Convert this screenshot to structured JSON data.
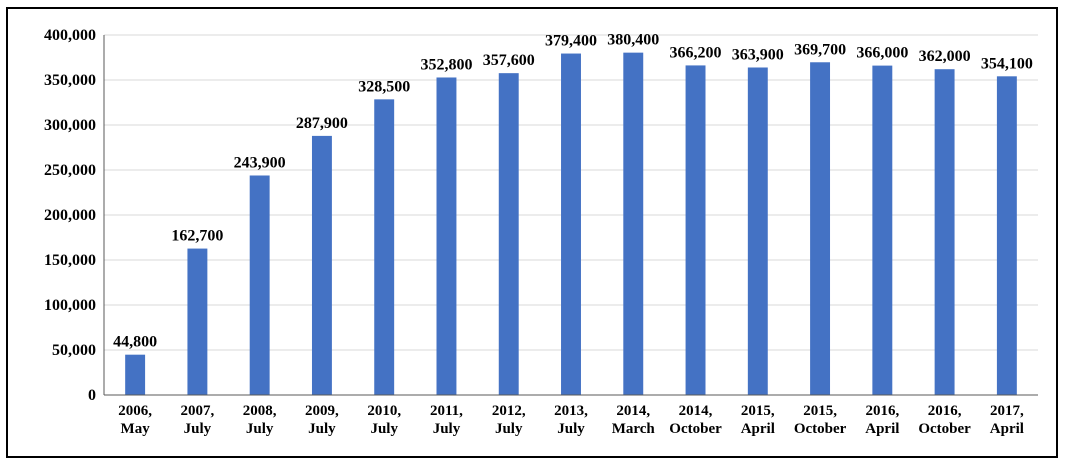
{
  "chart_data": {
    "type": "bar",
    "title": "",
    "xlabel": "",
    "ylabel": "",
    "categories": [
      [
        "2006,",
        "May"
      ],
      [
        "2007,",
        "July"
      ],
      [
        "2008,",
        "July"
      ],
      [
        "2009,",
        "July"
      ],
      [
        "2010,",
        "July"
      ],
      [
        "2011,",
        "July"
      ],
      [
        "2012,",
        "July"
      ],
      [
        "2013,",
        "July"
      ],
      [
        "2014,",
        "March"
      ],
      [
        "2014,",
        "October"
      ],
      [
        "2015,",
        "April"
      ],
      [
        "2015,",
        "October"
      ],
      [
        "2016,",
        "April"
      ],
      [
        "2016,",
        "October"
      ],
      [
        "2017,",
        "April"
      ]
    ],
    "values": [
      44800,
      162700,
      243900,
      287900,
      328500,
      352800,
      357600,
      379400,
      380400,
      366200,
      363900,
      369700,
      366000,
      362000,
      354100
    ],
    "data_labels": [
      "44,800",
      "162,700",
      "243,900",
      "287,900",
      "328,500",
      "352,800",
      "357,600",
      "379,400",
      "380,400",
      "366,200",
      "363,900",
      "369,700",
      "366,000",
      "362,000",
      "354,100"
    ],
    "ylim": [
      0,
      400000
    ],
    "yticks": [
      0,
      50000,
      100000,
      150000,
      200000,
      250000,
      300000,
      350000,
      400000
    ],
    "ytick_labels": [
      "0",
      "50,000",
      "100,000",
      "150,000",
      "200,000",
      "250,000",
      "300,000",
      "350,000",
      "400,000"
    ],
    "grid": true,
    "legend": "none",
    "bar_color": "#4472C4",
    "grid_color": "#D9D9D9"
  }
}
